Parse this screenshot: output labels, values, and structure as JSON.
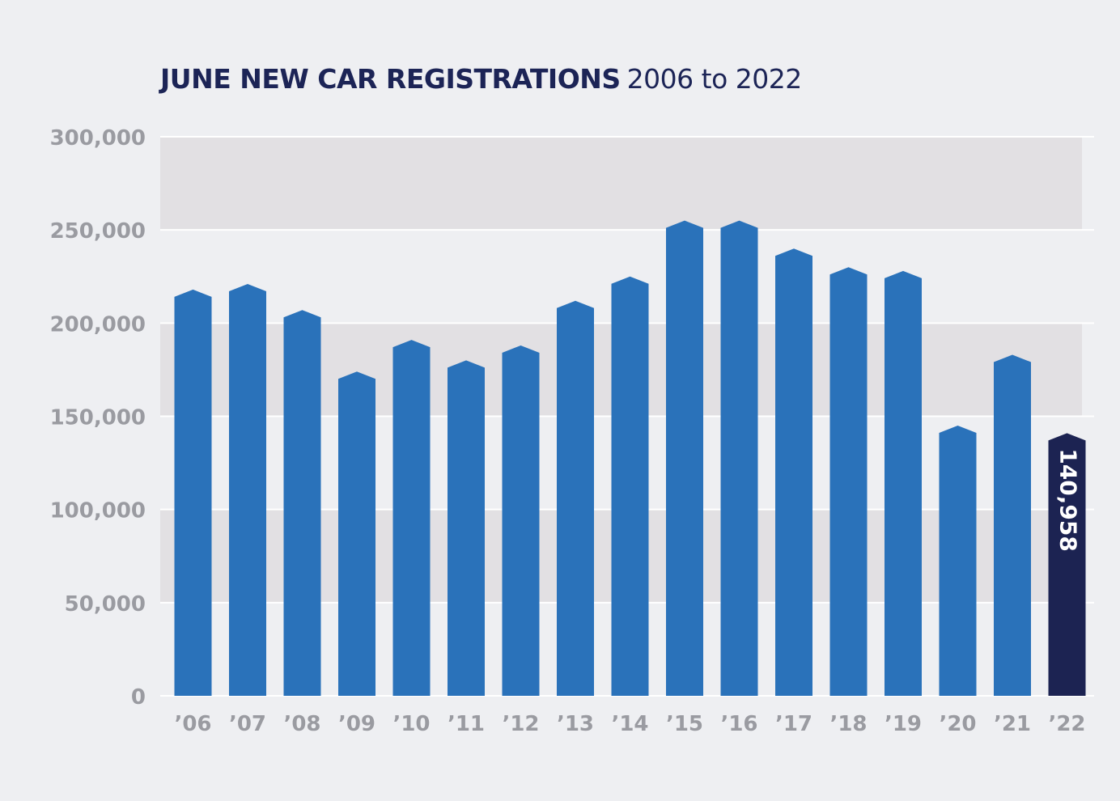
{
  "title": {
    "bold": "JUNE NEW CAR REGISTRATIONS",
    "light": "2006 to 2022"
  },
  "colors": {
    "bar": "#2a72ba",
    "highlight_bar": "#1c2352",
    "band": "#e2e0e3",
    "background": "#eeeff2",
    "grid": "#ffffff",
    "tick_text": "#9a9ba1",
    "title": "#1c2456"
  },
  "chart_data": {
    "type": "bar",
    "title": "JUNE NEW CAR REGISTRATIONS 2006 to 2022",
    "xlabel": "",
    "ylabel": "",
    "ylim": [
      0,
      300000
    ],
    "yticks": [
      0,
      50000,
      100000,
      150000,
      200000,
      250000,
      300000
    ],
    "ytick_labels": [
      "0",
      "50,000",
      "100,000",
      "150,000",
      "200,000",
      "250,000",
      "300,000"
    ],
    "categories": [
      "’06",
      "’07",
      "’08",
      "’09",
      "’10",
      "’11",
      "’12",
      "’13",
      "’14",
      "’15",
      "’16",
      "’17",
      "’18",
      "’19",
      "’20",
      "’21",
      "’22"
    ],
    "values": [
      218000,
      221000,
      207000,
      174000,
      191000,
      180000,
      188000,
      212000,
      225000,
      255000,
      255000,
      240000,
      230000,
      228000,
      145000,
      183000,
      140958
    ],
    "highlight_index": 16,
    "data_labels": [
      {
        "index": 16,
        "text": "140,958"
      }
    ],
    "bands": "alternating shaded bands between gridlines",
    "grid": true,
    "legend": "none"
  }
}
